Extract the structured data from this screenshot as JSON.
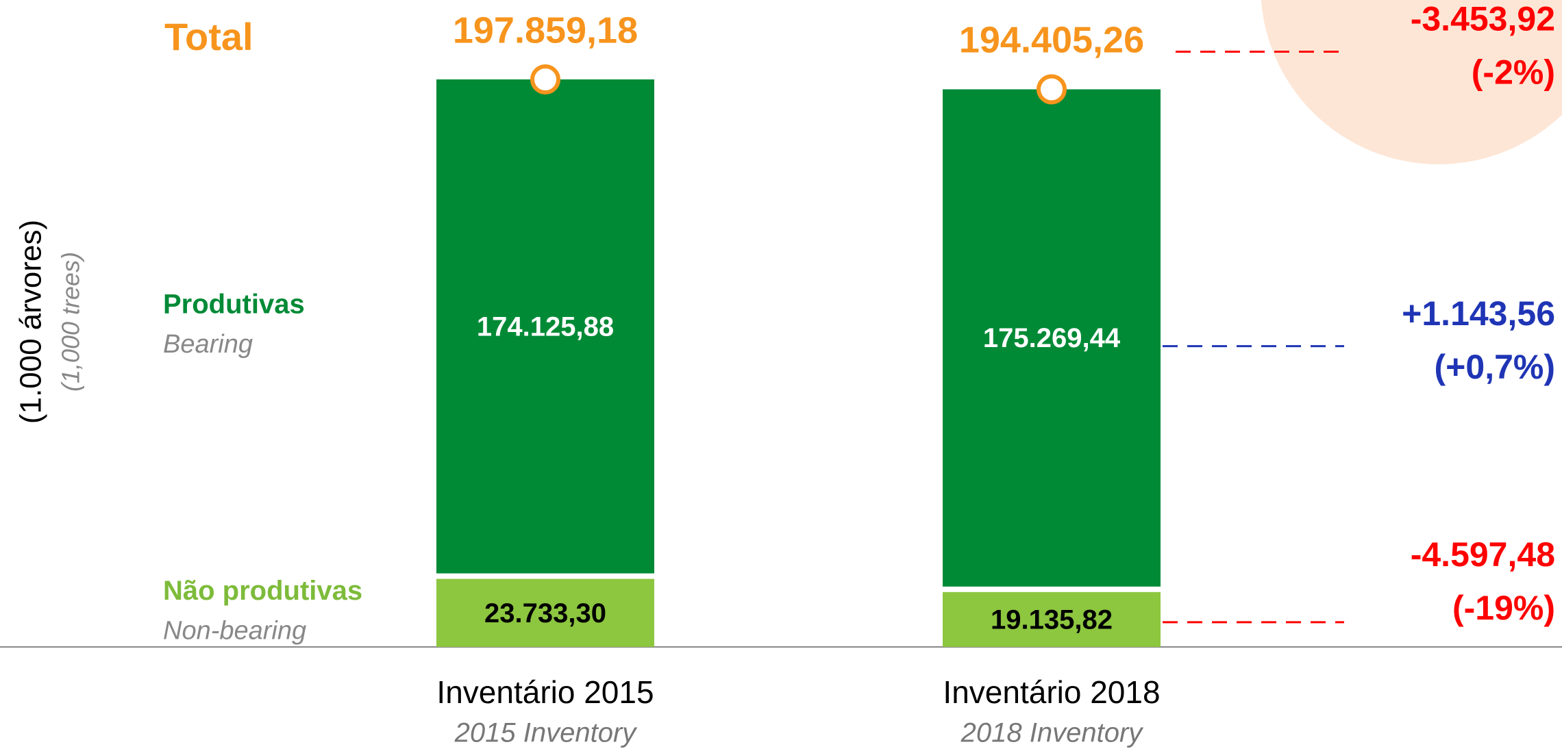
{
  "chart_data": {
    "type": "bar",
    "stacked": true,
    "y_label": "(1.000 árvores)",
    "y_label_en": "(1,000 trees)",
    "categories": [
      "Inventário 2015",
      "Inventário 2018"
    ],
    "categories_en": [
      "2015 Inventory",
      "2018 Inventory"
    ],
    "series": [
      {
        "name": "Não produtivas",
        "name_en": "Non-bearing",
        "color": "#8dc63f",
        "values": [
          23733.3,
          19135.82
        ],
        "value_labels": [
          "23.733,30",
          "19.135,82"
        ]
      },
      {
        "name": "Produtivas",
        "name_en": "Bearing",
        "color": "#008a36",
        "values": [
          174125.88,
          175269.44
        ],
        "value_labels": [
          "174.125,88",
          "175.269,44"
        ]
      }
    ],
    "totals": {
      "name": "Total",
      "color": "#f7941d",
      "values": [
        197859.18,
        194405.26
      ],
      "value_labels": [
        "197.859,18",
        "194.405,26"
      ]
    },
    "changes": [
      {
        "value": -3453.92,
        "label": "-3.453,92",
        "percent": -2,
        "percent_label": "(-2%)",
        "color": "#ff0000"
      },
      {
        "value": 1143.56,
        "label": "+1.143,56",
        "percent": 0.7,
        "percent_label": "(+0,7%)",
        "color": "#1f35b5"
      },
      {
        "value": -4597.48,
        "label": "-4.597,48",
        "percent": -19,
        "percent_label": "(-19%)",
        "color": "#ff0000"
      }
    ]
  }
}
